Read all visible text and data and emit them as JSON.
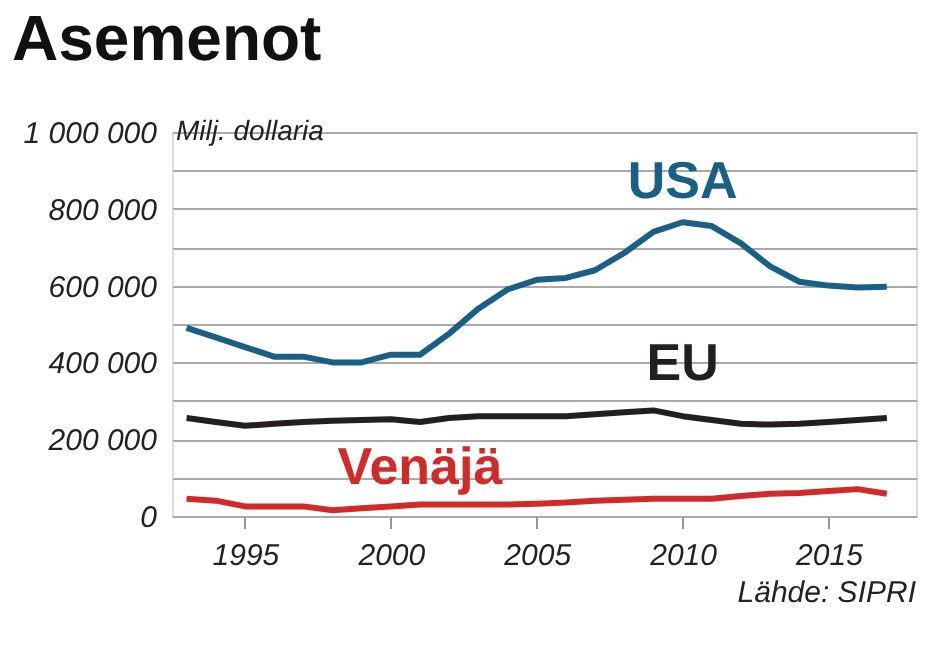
{
  "chart_data": {
    "type": "line",
    "title": "Asemenot",
    "ylabel": "Milj. dollaria",
    "annotations": [
      "Lähde: SIPRI"
    ],
    "x": [
      1993,
      1994,
      1995,
      1996,
      1997,
      1998,
      1999,
      2000,
      2001,
      2002,
      2003,
      2004,
      2005,
      2006,
      2007,
      2008,
      2009,
      2010,
      2011,
      2012,
      2013,
      2014,
      2015,
      2016,
      2017
    ],
    "series": [
      {
        "name": "USA",
        "color": "#1a5f86",
        "values": [
          490000,
          465000,
          440000,
          415000,
          415000,
          400000,
          400000,
          420000,
          420000,
          475000,
          540000,
          590000,
          615000,
          620000,
          640000,
          685000,
          740000,
          765000,
          755000,
          710000,
          650000,
          610000,
          600000,
          595000,
          597000
        ]
      },
      {
        "name": "EU",
        "color": "#231f20",
        "values": [
          255000,
          245000,
          235000,
          240000,
          245000,
          248000,
          250000,
          252000,
          245000,
          255000,
          260000,
          260000,
          260000,
          260000,
          265000,
          270000,
          275000,
          260000,
          250000,
          240000,
          238000,
          240000,
          245000,
          250000,
          255000
        ]
      },
      {
        "name": "Venäjä",
        "color": "#d12a2a",
        "values": [
          45000,
          40000,
          25000,
          25000,
          25000,
          15000,
          20000,
          25000,
          30000,
          30000,
          30000,
          30000,
          32000,
          35000,
          40000,
          42000,
          45000,
          45000,
          45000,
          52000,
          58000,
          60000,
          65000,
          70000,
          58000
        ]
      }
    ],
    "xlim": [
      1992.5,
      2018
    ],
    "xticks": [
      1995,
      2000,
      2005,
      2010,
      2015
    ],
    "ylim": [
      0,
      1000000
    ],
    "yticks": [
      0,
      {
        "value": 100000,
        "label": null
      },
      {
        "value": 200000,
        "label": "200 000"
      },
      {
        "value": 300000,
        "label": null
      },
      {
        "value": 400000,
        "label": "400 000"
      },
      {
        "value": 500000,
        "label": null
      },
      {
        "value": 600000,
        "label": "600 000"
      },
      {
        "value": 700000,
        "label": null
      },
      {
        "value": 800000,
        "label": "800 000"
      },
      {
        "value": 900000,
        "label": null
      },
      {
        "value": 1000000,
        "label": "1 000 000"
      }
    ],
    "grid": "y",
    "legend": false,
    "marker": "none",
    "line_style": "solid"
  }
}
